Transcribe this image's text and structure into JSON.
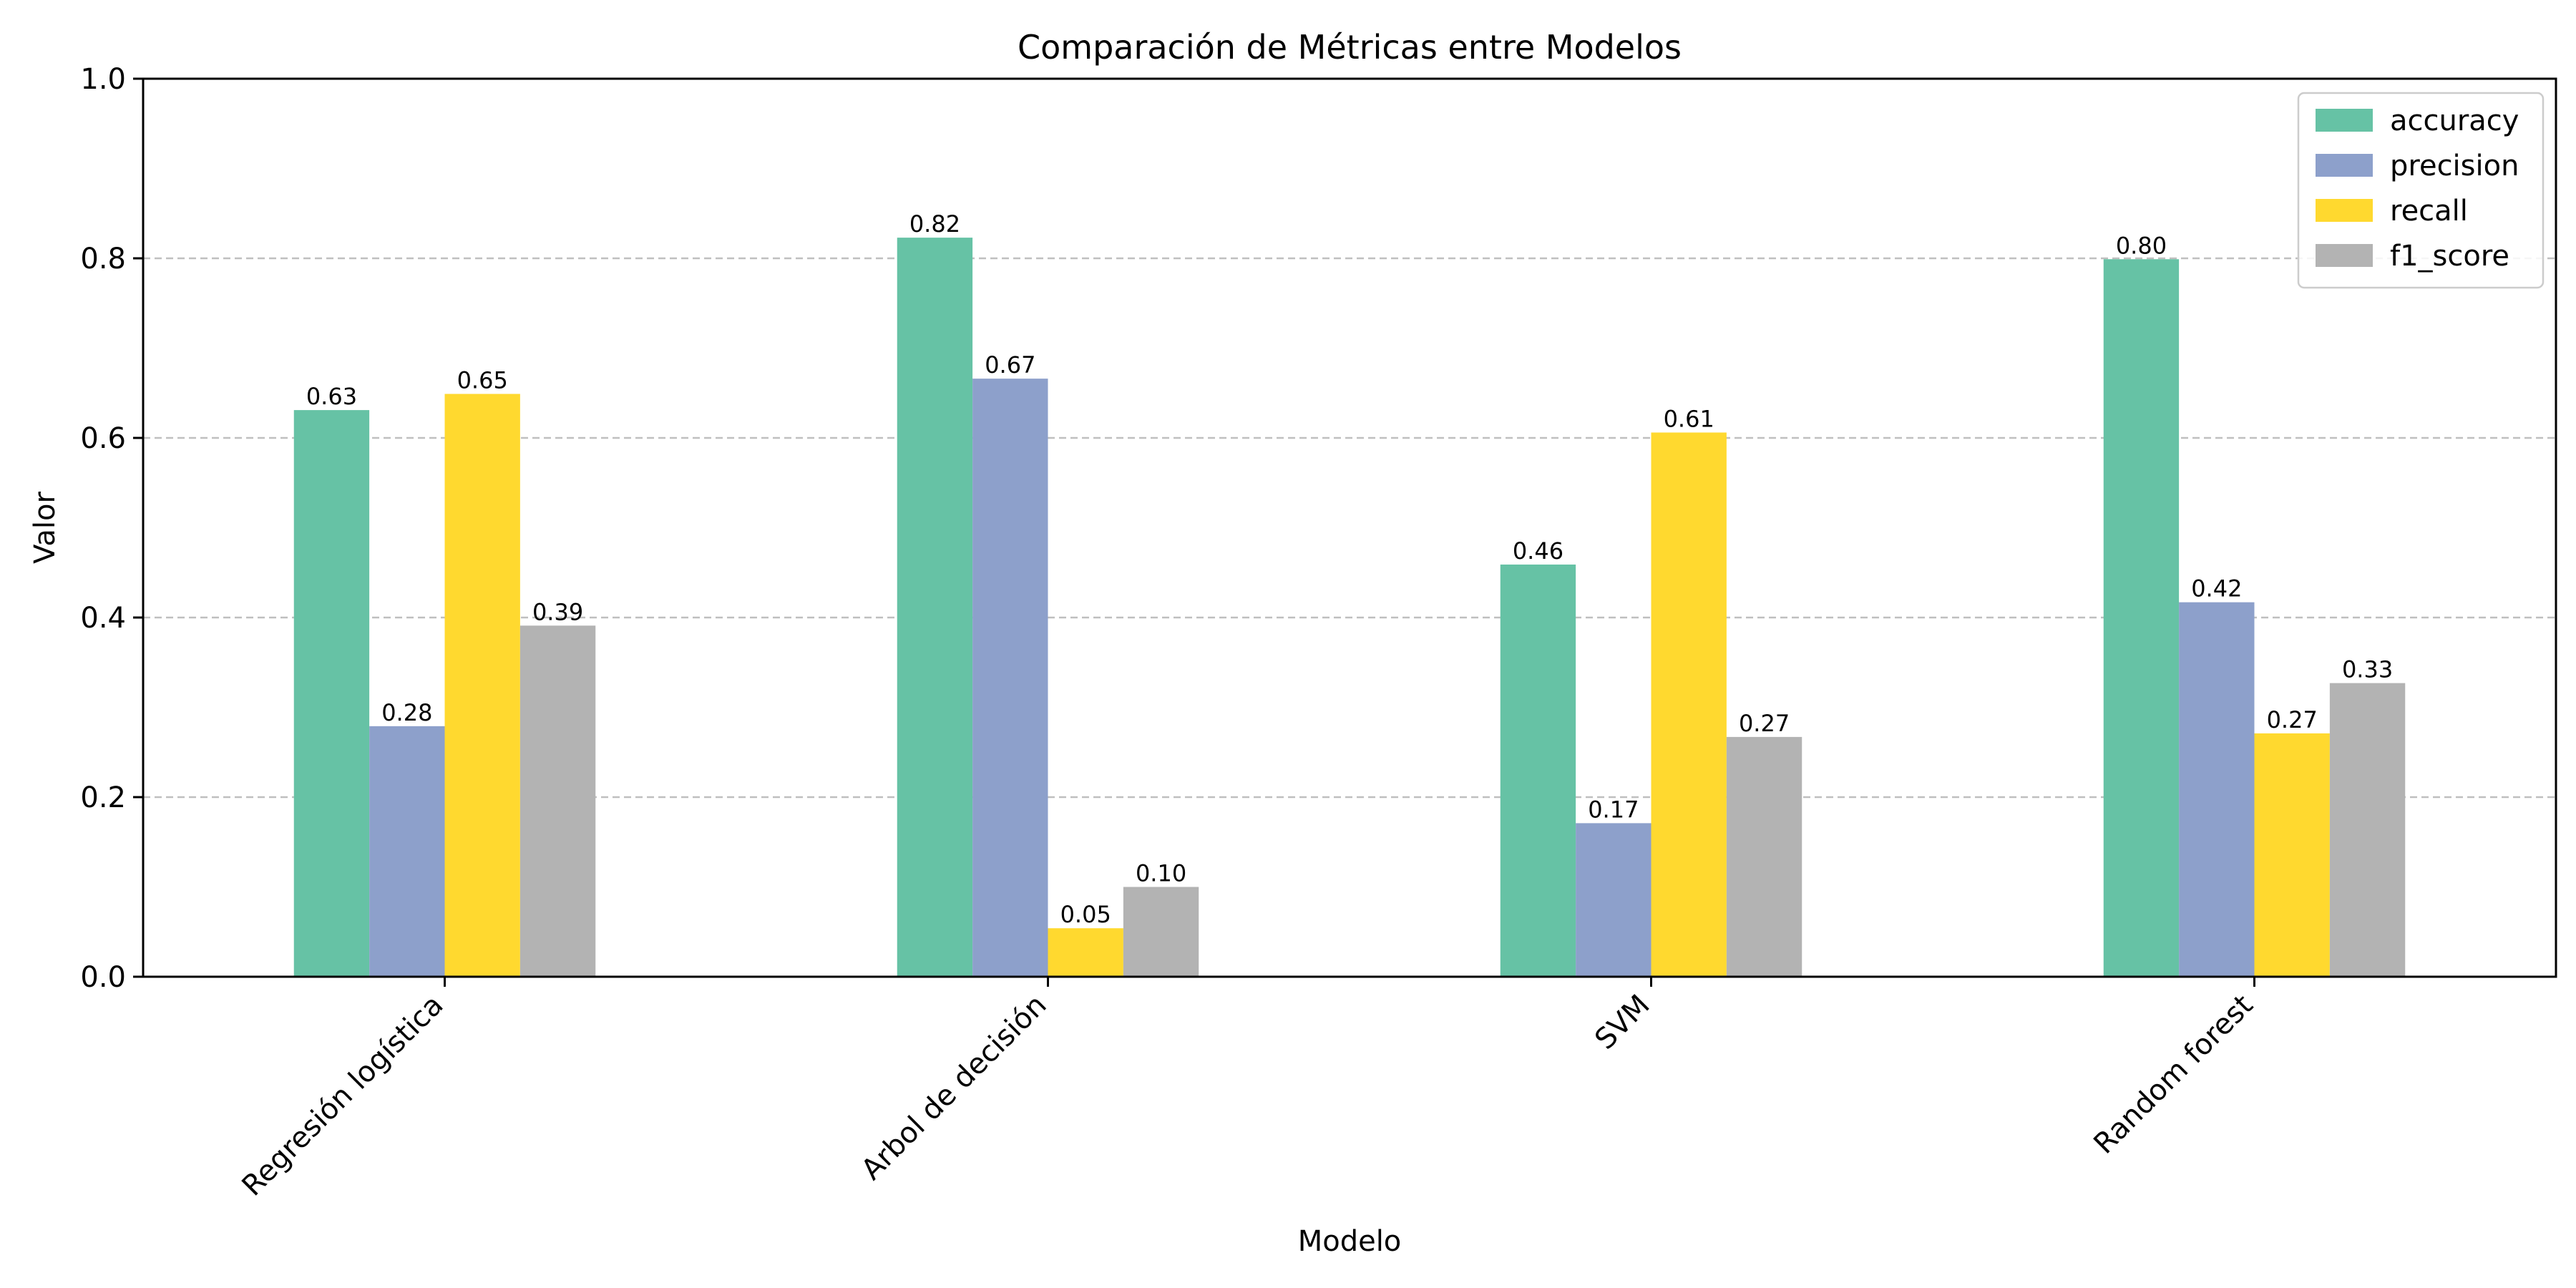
{
  "chart_data": {
    "type": "bar",
    "title": "Comparación de Métricas entre Modelos",
    "xlabel": "Modelo",
    "ylabel": "Valor",
    "categories": [
      "Regresión logística",
      "Arbol de decisión",
      "SVM",
      "Random forest"
    ],
    "series": [
      {
        "name": "accuracy",
        "color": "#66c2a5",
        "values": [
          0.631,
          0.823,
          0.459,
          0.799
        ],
        "labels": [
          "0.63",
          "0.82",
          "0.46",
          "0.80"
        ]
      },
      {
        "name": "precision",
        "color": "#8da0cb",
        "values": [
          0.279,
          0.666,
          0.171,
          0.417
        ],
        "labels": [
          "0.28",
          "0.67",
          "0.17",
          "0.42"
        ]
      },
      {
        "name": "recall",
        "color": "#ffd92f",
        "values": [
          0.649,
          0.054,
          0.606,
          0.271
        ],
        "labels": [
          "0.65",
          "0.05",
          "0.61",
          "0.27"
        ]
      },
      {
        "name": "f1_score",
        "color": "#b3b3b3",
        "values": [
          0.391,
          0.1,
          0.267,
          0.327
        ],
        "labels": [
          "0.39",
          "0.10",
          "0.27",
          "0.33"
        ]
      }
    ],
    "ylim": [
      0,
      1.0
    ],
    "yticks": [
      0.0,
      0.2,
      0.4,
      0.6,
      0.8,
      1.0
    ],
    "ytick_labels": [
      "0.0",
      "0.2",
      "0.4",
      "0.6",
      "0.8",
      "1.0"
    ],
    "grid": "horizontal dashed",
    "legend_position": "top-right"
  }
}
